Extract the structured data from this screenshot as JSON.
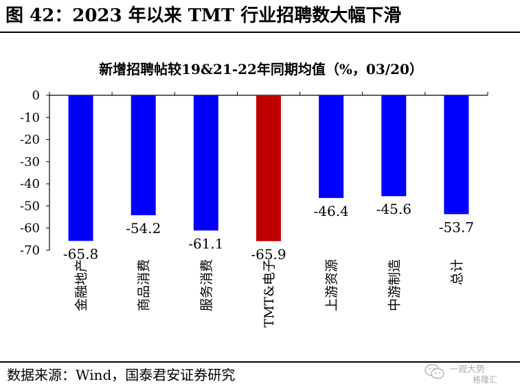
{
  "figure": {
    "title": "图 42：2023 年以来 TMT 行业招聘数大幅下滑",
    "source": "数据来源：Wind，国泰君安证券研究"
  },
  "watermark": {
    "line1": "一观大势",
    "line2": "格隆汇"
  },
  "colors": {
    "default_bar": "#0000FF",
    "highlight_bar": "#C00000",
    "axis": "#000000"
  },
  "chart_data": {
    "type": "bar",
    "title": "新增招聘帖较19&21-22年同期均值（%，03/20）",
    "categories": [
      "金融地产",
      "商品消费",
      "服务消费",
      "TMT&电子",
      "上游资源",
      "中游制造",
      "总计"
    ],
    "values": [
      -65.8,
      -54.2,
      -61.1,
      -65.9,
      -46.4,
      -45.6,
      -53.7
    ],
    "data_labels": [
      "-65.8",
      "-54.2",
      "-61.1",
      "-65.9",
      "-46.4",
      "-45.6",
      "-53.7"
    ],
    "highlight_index": 3,
    "ylim": [
      -70,
      0
    ],
    "yticks": [
      0,
      -10,
      -20,
      -30,
      -40,
      -50,
      -60,
      -70
    ],
    "ytick_labels": [
      "0",
      "-10",
      "-20",
      "-30",
      "-40",
      "-50",
      "-60",
      "-70"
    ],
    "xlabel": "",
    "ylabel": "",
    "grid": false,
    "legend": "none"
  }
}
